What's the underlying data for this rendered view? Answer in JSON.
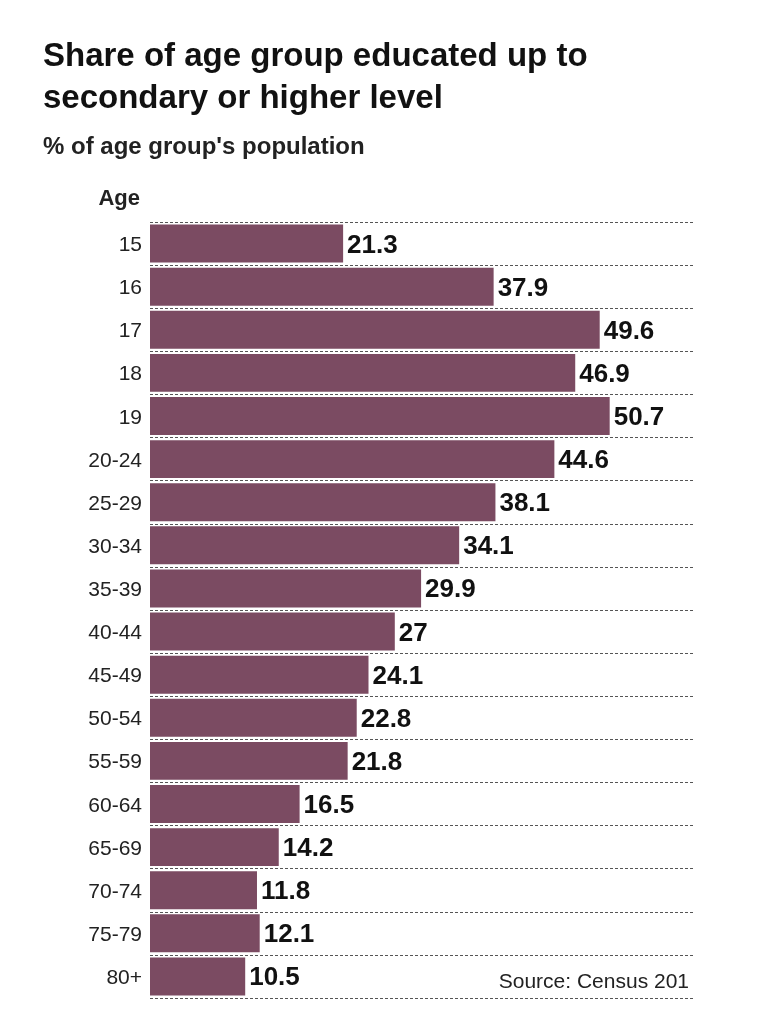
{
  "chart_data": {
    "type": "bar",
    "orientation": "horizontal",
    "title": "Share of age group educated up to\nsecondary or higher level",
    "subtitle": "% of age group's population",
    "ylabel": "Age",
    "categories": [
      "15",
      "16",
      "17",
      "18",
      "19",
      "20-24",
      "25-29",
      "30-34",
      "35-39",
      "40-44",
      "45-49",
      "50-54",
      "55-59",
      "60-64",
      "65-69",
      "70-74",
      "75-79",
      "80+"
    ],
    "values": [
      21.3,
      37.9,
      49.6,
      46.9,
      50.7,
      44.6,
      38.1,
      34.1,
      29.9,
      27,
      24.1,
      22.8,
      21.8,
      16.5,
      14.2,
      11.8,
      12.1,
      10.5
    ],
    "color": "#7b4b62",
    "data_labels": true,
    "grid": "y",
    "annotations": [
      "Source: Census 201"
    ]
  }
}
